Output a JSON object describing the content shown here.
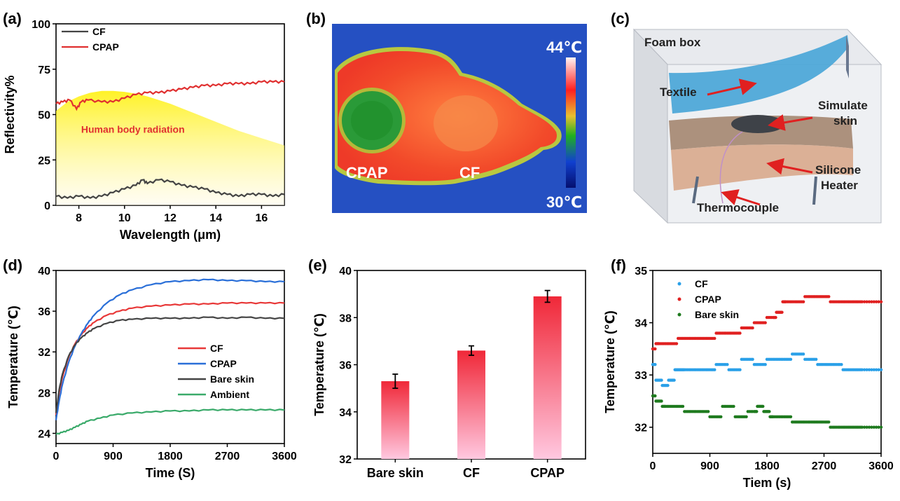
{
  "panel_labels": {
    "a": "(a)",
    "b": "(b)",
    "c": "(c)",
    "d": "(d)",
    "e": "(e)",
    "f": "(f)"
  },
  "thermal": {
    "max_label": "44℃",
    "min_label": "30℃",
    "label_cpap": "CPAP",
    "label_cf": "CF",
    "colors": [
      "#fff0f0",
      "#ff3030",
      "#e8c030",
      "#30b030",
      "#1040d0",
      "#05106e"
    ]
  },
  "diagram": {
    "foam_box": "Foam box",
    "textile": "Textile",
    "simulate_skin": "Simulate\nskin",
    "silicone_heater": "Silicone\nHeater",
    "thermocouple": "Thermocouple"
  },
  "chart_data": [
    {
      "id": "a",
      "type": "line",
      "title": "",
      "xlabel": "Wavelength (μm)",
      "ylabel": "Reflectivity%",
      "xlim": [
        7,
        17
      ],
      "ylim": [
        0,
        100
      ],
      "xticks": [
        8,
        10,
        12,
        14,
        16
      ],
      "yticks": [
        0,
        25,
        50,
        75,
        100
      ],
      "annotation": "Human body radiation",
      "series": [
        {
          "name": "CF",
          "color": "#444444",
          "x": [
            7,
            7.5,
            8,
            8.5,
            9,
            9.5,
            10,
            10.5,
            10.8,
            11,
            11.5,
            12,
            12.5,
            13,
            13.5,
            14,
            14.5,
            15,
            15.5,
            16,
            16.5,
            17
          ],
          "y": [
            5,
            4,
            5,
            4,
            5,
            7,
            9,
            11,
            14,
            12,
            14,
            13,
            11,
            10,
            9,
            7,
            6,
            5,
            6,
            6,
            5,
            6
          ]
        },
        {
          "name": "CPAP",
          "color": "#e03030",
          "x": [
            7,
            7.3,
            7.6,
            7.9,
            8.1,
            8.4,
            9,
            9.5,
            10,
            10.5,
            11,
            11.5,
            12,
            12.5,
            13,
            13.5,
            14,
            14.5,
            15,
            15.5,
            16,
            16.5,
            17
          ],
          "y": [
            56,
            57,
            58,
            53,
            57,
            58,
            57,
            57,
            59,
            61,
            62,
            62,
            63,
            64,
            65,
            66,
            66,
            67,
            67,
            67,
            68,
            68,
            68
          ]
        }
      ],
      "radiation": {
        "x": [
          7,
          7.5,
          8,
          8.5,
          9,
          9.5,
          10,
          10.5,
          11,
          11.5,
          12,
          13,
          14,
          15,
          16,
          17
        ],
        "y": [
          52,
          57,
          60,
          62,
          63,
          63,
          62.5,
          61.5,
          60,
          58,
          56,
          51,
          46,
          41,
          37,
          33
        ]
      }
    },
    {
      "id": "d",
      "type": "line",
      "xlabel": "Time (S)",
      "ylabel": "Temperature (℃)",
      "xlim": [
        0,
        3600
      ],
      "ylim": [
        23,
        40
      ],
      "xticks": [
        0,
        900,
        1800,
        2700,
        3600
      ],
      "yticks": [
        24,
        28,
        32,
        36,
        40
      ],
      "series": [
        {
          "name": "CF",
          "color": "#e83838",
          "x": [
            0,
            50,
            100,
            200,
            300,
            400,
            500,
            600,
            800,
            1000,
            1200,
            1500,
            1800,
            2100,
            2400,
            2700,
            3000,
            3300,
            3600
          ],
          "y": [
            25.8,
            28.0,
            29.5,
            31.5,
            32.8,
            33.7,
            34.4,
            34.9,
            35.6,
            36.0,
            36.3,
            36.5,
            36.6,
            36.7,
            36.7,
            36.8,
            36.8,
            36.8,
            36.8
          ]
        },
        {
          "name": "CPAP",
          "color": "#2a6fd8",
          "x": [
            0,
            50,
            100,
            200,
            300,
            400,
            500,
            600,
            800,
            1000,
            1200,
            1500,
            1800,
            2100,
            2400,
            2700,
            3000,
            3300,
            3600
          ],
          "y": [
            25.3,
            27.2,
            28.8,
            31.0,
            32.6,
            33.8,
            34.8,
            35.6,
            36.8,
            37.6,
            38.1,
            38.6,
            38.9,
            39.0,
            39.1,
            39.0,
            39.0,
            38.9,
            38.9
          ]
        },
        {
          "name": "Bare skin",
          "color": "#444444",
          "x": [
            0,
            50,
            100,
            200,
            300,
            400,
            500,
            600,
            800,
            1000,
            1200,
            1500,
            1800,
            2100,
            2400,
            2700,
            3000,
            3300,
            3600
          ],
          "y": [
            26.0,
            28.3,
            29.8,
            31.6,
            32.7,
            33.4,
            33.9,
            34.3,
            34.8,
            35.1,
            35.2,
            35.3,
            35.3,
            35.3,
            35.4,
            35.3,
            35.4,
            35.3,
            35.3
          ]
        },
        {
          "name": "Ambient",
          "color": "#3aaa6a",
          "x": [
            0,
            100,
            200,
            300,
            400,
            500,
            700,
            900,
            1200,
            1500,
            1800,
            2100,
            2400,
            2700,
            3000,
            3300,
            3600
          ],
          "y": [
            23.9,
            24.1,
            24.3,
            24.6,
            24.9,
            25.2,
            25.5,
            25.8,
            26.0,
            26.1,
            26.2,
            26.2,
            26.3,
            26.3,
            26.3,
            26.3,
            26.3
          ]
        }
      ]
    },
    {
      "id": "e",
      "type": "bar",
      "xlabel": "",
      "ylabel": "Temperature (℃)",
      "ylim": [
        32,
        40
      ],
      "yticks": [
        32,
        34,
        36,
        38,
        40
      ],
      "categories": [
        "Bare skin",
        "CF",
        "CPAP"
      ],
      "values": [
        35.3,
        36.6,
        38.9
      ],
      "errors": [
        0.3,
        0.2,
        0.25
      ]
    },
    {
      "id": "f",
      "type": "scatter",
      "xlabel": "Tiem (s)",
      "ylabel": "Temperature (℃)",
      "xlim": [
        0,
        3600
      ],
      "ylim": [
        31.5,
        35
      ],
      "xticks": [
        0,
        900,
        1800,
        2700,
        3600
      ],
      "yticks": [
        32,
        33,
        34,
        35
      ],
      "series": [
        {
          "name": "CF",
          "color": "#2aa0e8",
          "x": [
            0,
            100,
            200,
            300,
            400,
            500,
            700,
            900,
            1100,
            1300,
            1500,
            1700,
            1900,
            2100,
            2300,
            2500,
            2700,
            2900,
            3100,
            3300,
            3600
          ],
          "y": [
            33.2,
            32.9,
            32.8,
            32.9,
            33.1,
            33.1,
            33.1,
            33.1,
            33.2,
            33.1,
            33.3,
            33.2,
            33.3,
            33.3,
            33.4,
            33.3,
            33.2,
            33.2,
            33.1,
            33.1,
            33.1
          ]
        },
        {
          "name": "CPAP",
          "color": "#e02020",
          "x": [
            0,
            100,
            300,
            500,
            700,
            900,
            1100,
            1300,
            1500,
            1700,
            1900,
            2000,
            2100,
            2300,
            2500,
            2700,
            2900,
            3100,
            3300,
            3600
          ],
          "y": [
            33.5,
            33.6,
            33.6,
            33.7,
            33.7,
            33.7,
            33.8,
            33.8,
            33.9,
            34.0,
            34.1,
            34.2,
            34.4,
            34.4,
            34.5,
            34.5,
            34.4,
            34.4,
            34.4,
            34.4
          ]
        },
        {
          "name": "Bare skin",
          "color": "#1e7a1e",
          "x": [
            0,
            100,
            200,
            400,
            600,
            800,
            1000,
            1200,
            1400,
            1600,
            1700,
            1800,
            1900,
            2100,
            2300,
            2500,
            2700,
            2900,
            3100,
            3300,
            3600
          ],
          "y": [
            32.6,
            32.5,
            32.4,
            32.4,
            32.3,
            32.3,
            32.2,
            32.4,
            32.2,
            32.3,
            32.4,
            32.3,
            32.2,
            32.2,
            32.1,
            32.1,
            32.1,
            32.0,
            32.0,
            32.0,
            32.0
          ]
        }
      ]
    }
  ]
}
